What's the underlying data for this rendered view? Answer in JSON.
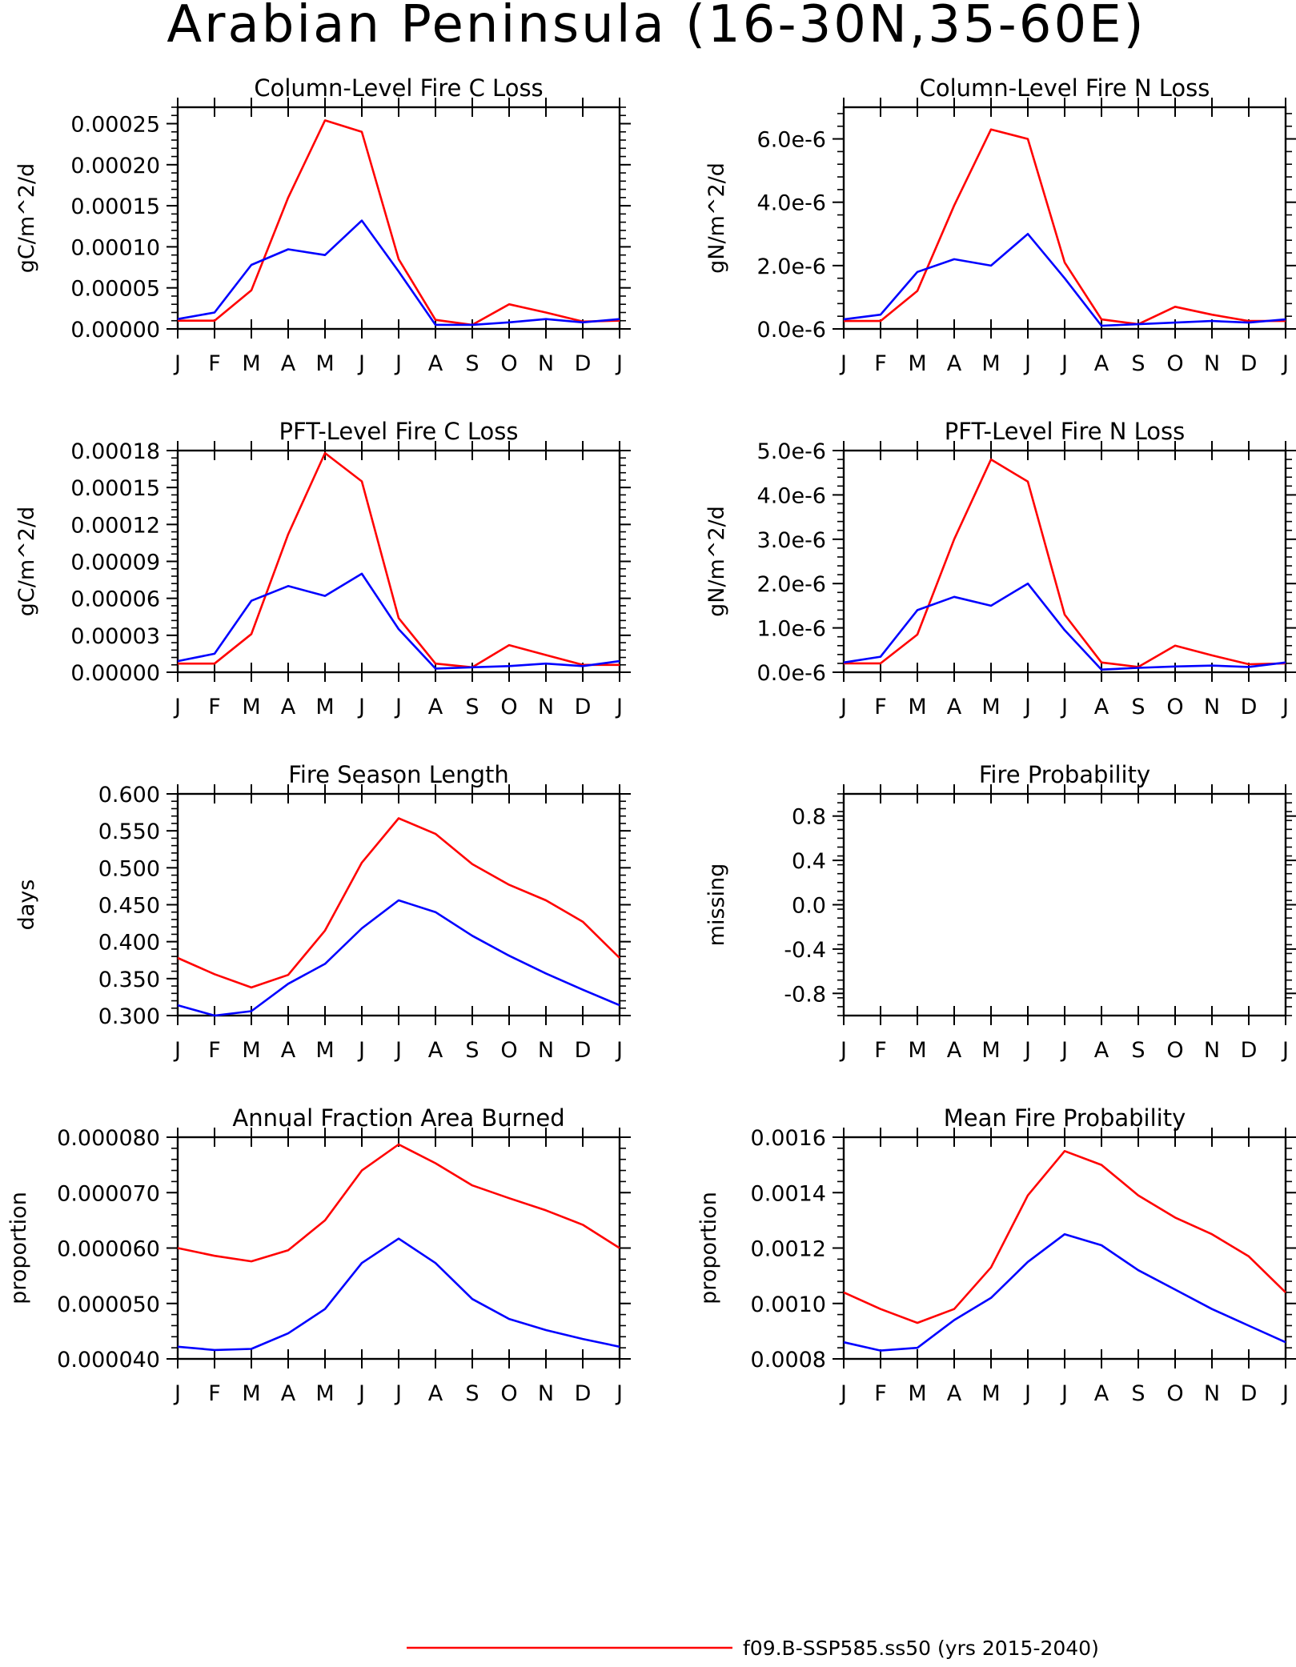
{
  "page": {
    "title": "Arabian Peninsula (16-30N,35-60E)"
  },
  "legend": {
    "entries": [
      {
        "label": "f09.B-SSP585.ss50 (yrs 2015-2040)",
        "color": "#ff0000"
      }
    ]
  },
  "colors": {
    "red_series": "#ff0000",
    "blue_series": "#0000ff"
  },
  "chart_data": [
    {
      "type": "line",
      "title": "Column-Level Fire C Loss",
      "ylabel": "gC/m^2/d",
      "xlabel": "",
      "categories": [
        "J",
        "F",
        "M",
        "A",
        "M",
        "J",
        "J",
        "A",
        "S",
        "O",
        "N",
        "D",
        "J"
      ],
      "ylim": [
        0,
        0.00027
      ],
      "yticks": [
        0,
        5e-05,
        0.0001,
        0.00015,
        0.0002,
        0.00025
      ],
      "ytick_labels": [
        "0.00000",
        "0.00005",
        "0.00010",
        "0.00015",
        "0.00020",
        "0.00025"
      ],
      "series": [
        {
          "color": "#ff0000",
          "values": [
            1e-05,
            1e-05,
            4.7e-05,
            0.00016,
            0.000254,
            0.00024,
            8.5e-05,
            1.1e-05,
            5e-06,
            3e-05,
            2e-05,
            9e-06,
            1e-05
          ]
        },
        {
          "color": "#0000ff",
          "values": [
            1.2e-05,
            2e-05,
            7.8e-05,
            9.7e-05,
            9e-05,
            0.000132,
            7e-05,
            5e-06,
            5e-06,
            8e-06,
            1.2e-05,
            8e-06,
            1.2e-05
          ]
        }
      ]
    },
    {
      "type": "line",
      "title": "Column-Level Fire N Loss",
      "ylabel": "gN/m^2/d",
      "xlabel": "",
      "categories": [
        "J",
        "F",
        "M",
        "A",
        "M",
        "J",
        "J",
        "A",
        "S",
        "O",
        "N",
        "D",
        "J"
      ],
      "ylim": [
        0,
        7e-06
      ],
      "yticks": [
        0,
        2e-06,
        4e-06,
        6e-06
      ],
      "ytick_labels": [
        "0.0e-6",
        "2.0e-6",
        "4.0e-6",
        "6.0e-6"
      ],
      "series": [
        {
          "color": "#ff0000",
          "values": [
            2.5e-07,
            2.5e-07,
            1.2e-06,
            3.9e-06,
            6.3e-06,
            6e-06,
            2.1e-06,
            3e-07,
            1.5e-07,
            7e-07,
            4.5e-07,
            2.5e-07,
            2.5e-07
          ]
        },
        {
          "color": "#0000ff",
          "values": [
            3e-07,
            4.5e-07,
            1.8e-06,
            2.2e-06,
            2e-06,
            3e-06,
            1.6e-06,
            1e-07,
            1.5e-07,
            2e-07,
            2.5e-07,
            2e-07,
            3e-07
          ]
        }
      ]
    },
    {
      "type": "line",
      "title": "PFT-Level Fire C Loss",
      "ylabel": "gC/m^2/d",
      "xlabel": "",
      "categories": [
        "J",
        "F",
        "M",
        "A",
        "M",
        "J",
        "J",
        "A",
        "S",
        "O",
        "N",
        "D",
        "J"
      ],
      "ylim": [
        0,
        0.00018
      ],
      "yticks": [
        0,
        3e-05,
        6e-05,
        9e-05,
        0.00012,
        0.00015,
        0.00018
      ],
      "ytick_labels": [
        "0.00000",
        "0.00003",
        "0.00006",
        "0.00009",
        "0.00012",
        "0.00015",
        "0.00018"
      ],
      "series": [
        {
          "color": "#ff0000",
          "values": [
            7e-06,
            7e-06,
            3.1e-05,
            0.000112,
            0.000178,
            0.000155,
            4.4e-05,
            7e-06,
            4e-06,
            2.2e-05,
            1.4e-05,
            6e-06,
            6e-06
          ]
        },
        {
          "color": "#0000ff",
          "values": [
            9e-06,
            1.5e-05,
            5.8e-05,
            7e-05,
            6.2e-05,
            8e-05,
            3.5e-05,
            3e-06,
            4e-06,
            5e-06,
            7e-06,
            5e-06,
            9e-06
          ]
        }
      ]
    },
    {
      "type": "line",
      "title": "PFT-Level Fire N Loss",
      "ylabel": "gN/m^2/d",
      "xlabel": "",
      "categories": [
        "J",
        "F",
        "M",
        "A",
        "M",
        "J",
        "J",
        "A",
        "S",
        "O",
        "N",
        "D",
        "J"
      ],
      "ylim": [
        0,
        5e-06
      ],
      "yticks": [
        0,
        1e-06,
        2e-06,
        3e-06,
        4e-06,
        5e-06
      ],
      "ytick_labels": [
        "0.0e-6",
        "1.0e-6",
        "2.0e-6",
        "3.0e-6",
        "4.0e-6",
        "5.0e-6"
      ],
      "series": [
        {
          "color": "#ff0000",
          "values": [
            2e-07,
            2e-07,
            8.5e-07,
            3e-06,
            4.8e-06,
            4.3e-06,
            1.3e-06,
            2.2e-07,
            1.2e-07,
            6e-07,
            3.8e-07,
            1.8e-07,
            2e-07
          ]
        },
        {
          "color": "#0000ff",
          "values": [
            2.2e-07,
            3.5e-07,
            1.4e-06,
            1.7e-06,
            1.5e-06,
            2e-06,
            9.5e-07,
            6e-08,
            1e-07,
            1.3e-07,
            1.5e-07,
            1.2e-07,
            2.2e-07
          ]
        }
      ]
    },
    {
      "type": "line",
      "title": "Fire Season Length",
      "ylabel": "days",
      "xlabel": "",
      "categories": [
        "J",
        "F",
        "M",
        "A",
        "M",
        "J",
        "J",
        "A",
        "S",
        "O",
        "N",
        "D",
        "J"
      ],
      "ylim": [
        0.3,
        0.6
      ],
      "yticks": [
        0.3,
        0.35,
        0.4,
        0.45,
        0.5,
        0.55,
        0.6
      ],
      "ytick_labels": [
        "0.300",
        "0.350",
        "0.400",
        "0.450",
        "0.500",
        "0.550",
        "0.600"
      ],
      "series": [
        {
          "color": "#ff0000",
          "values": [
            0.378,
            0.356,
            0.338,
            0.355,
            0.415,
            0.507,
            0.567,
            0.546,
            0.505,
            0.477,
            0.456,
            0.427,
            0.378
          ]
        },
        {
          "color": "#0000ff",
          "values": [
            0.314,
            0.3,
            0.306,
            0.343,
            0.37,
            0.418,
            0.456,
            0.44,
            0.408,
            0.381,
            0.357,
            0.335,
            0.314
          ]
        }
      ]
    },
    {
      "type": "line",
      "title": "Fire Probability",
      "ylabel": "missing",
      "xlabel": "",
      "categories": [
        "J",
        "F",
        "M",
        "A",
        "M",
        "J",
        "J",
        "A",
        "S",
        "O",
        "N",
        "D",
        "J"
      ],
      "ylim": [
        -1,
        1
      ],
      "yticks": [
        -0.8,
        -0.4,
        0,
        0.4,
        0.8
      ],
      "ytick_labels": [
        "-0.8",
        "-0.4",
        "0.0",
        "0.4",
        "0.8"
      ],
      "series": []
    },
    {
      "type": "line",
      "title": "Annual Fraction Area Burned",
      "ylabel": "proportion",
      "xlabel": "",
      "categories": [
        "J",
        "F",
        "M",
        "A",
        "M",
        "J",
        "J",
        "A",
        "S",
        "O",
        "N",
        "D",
        "J"
      ],
      "ylim": [
        4e-05,
        8e-05
      ],
      "yticks": [
        4e-05,
        5e-05,
        6e-05,
        7e-05,
        8e-05
      ],
      "ytick_labels": [
        "0.000040",
        "0.000050",
        "0.000060",
        "0.000070",
        "0.000080"
      ],
      "series": [
        {
          "color": "#ff0000",
          "values": [
            6e-05,
            5.86e-05,
            5.76e-05,
            5.96e-05,
            6.5e-05,
            7.4e-05,
            7.87e-05,
            7.53e-05,
            7.13e-05,
            6.9e-05,
            6.68e-05,
            6.42e-05,
            6e-05
          ]
        },
        {
          "color": "#0000ff",
          "values": [
            4.22e-05,
            4.16e-05,
            4.18e-05,
            4.46e-05,
            4.9e-05,
            5.73e-05,
            6.17e-05,
            5.73e-05,
            5.08e-05,
            4.72e-05,
            4.52e-05,
            4.36e-05,
            4.22e-05
          ]
        }
      ]
    },
    {
      "type": "line",
      "title": "Mean Fire Probability",
      "ylabel": "proportion",
      "xlabel": "",
      "categories": [
        "J",
        "F",
        "M",
        "A",
        "M",
        "J",
        "J",
        "A",
        "S",
        "O",
        "N",
        "D",
        "J"
      ],
      "ylim": [
        0.0008,
        0.0016
      ],
      "yticks": [
        0.0008,
        0.001,
        0.0012,
        0.0014,
        0.0016
      ],
      "ytick_labels": [
        "0.0008",
        "0.0010",
        "0.0012",
        "0.0014",
        "0.0016"
      ],
      "series": [
        {
          "color": "#ff0000",
          "values": [
            0.00104,
            0.00098,
            0.00093,
            0.00098,
            0.00113,
            0.00139,
            0.00155,
            0.0015,
            0.00139,
            0.00131,
            0.00125,
            0.00117,
            0.00104
          ]
        },
        {
          "color": "#0000ff",
          "values": [
            0.00086,
            0.00083,
            0.00084,
            0.00094,
            0.00102,
            0.00115,
            0.00125,
            0.00121,
            0.00112,
            0.00105,
            0.00098,
            0.00092,
            0.00086
          ]
        }
      ]
    }
  ]
}
